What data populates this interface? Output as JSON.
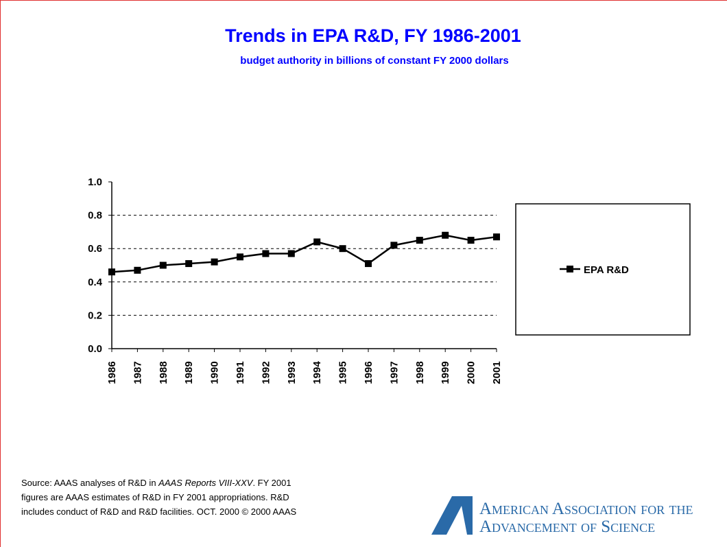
{
  "chart_data": {
    "type": "line",
    "title": "Trends in EPA R&D, FY 1986-2001",
    "subtitle": "budget authority in billions of constant FY 2000 dollars",
    "categories": [
      "1986",
      "1987",
      "1988",
      "1989",
      "1990",
      "1991",
      "1992",
      "1993",
      "1994",
      "1995",
      "1996",
      "1997",
      "1998",
      "1999",
      "2000",
      "2001"
    ],
    "series": [
      {
        "name": "EPA R&D",
        "color": "#000000",
        "values": [
          0.46,
          0.47,
          0.5,
          0.51,
          0.52,
          0.55,
          0.57,
          0.57,
          0.64,
          0.6,
          0.51,
          0.62,
          0.65,
          0.68,
          0.65,
          0.67
        ]
      }
    ],
    "ylim": [
      0,
      1.0
    ],
    "yticks": [
      {
        "value": 0,
        "label": "0.0"
      },
      0.2,
      0.4,
      0.6,
      0.8,
      {
        "value": 1.0,
        "label": "1.0"
      }
    ],
    "grid": true,
    "legend": "right"
  },
  "footer": {
    "source": [
      "Source: AAAS analyses of R&D in ",
      "AAAS Reports VIII-XXV",
      ". FY 2001 figures are AAAS estimates of R&D in FY 2001 appropriations. R&D includes conduct of R&D and R&D facilities. OCT. 2000 © 2000 AAAS"
    ],
    "logo": [
      "American Association for the",
      "Advancement of Science"
    ]
  }
}
